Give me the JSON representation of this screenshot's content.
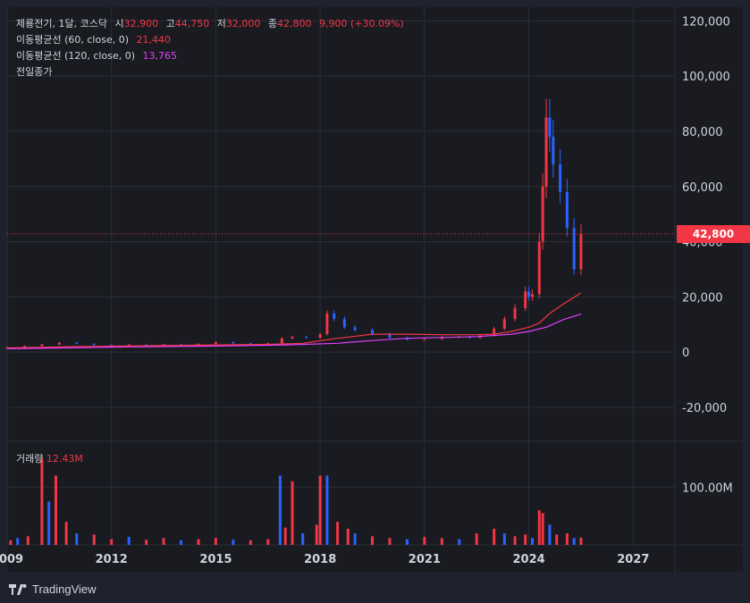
{
  "legend": {
    "symbol": "제룡전기, 1달, 코스닥",
    "open_label": "시",
    "open": "32,900",
    "high_label": "고",
    "high": "44,750",
    "low_label": "저",
    "low": "32,000",
    "close_label": "종",
    "close": "42,800",
    "change": "9,900 (+30.09%)",
    "ma60_label": "이동평균선 (60, close, 0)",
    "ma60_value": "21,440",
    "ma120_label": "이동평균선 (120, close, 0)",
    "ma120_value": "13,765",
    "prev_close_label": "전일종가"
  },
  "volume_legend": {
    "label": "거래량",
    "value": "12.43M"
  },
  "price_tag": "42,800",
  "footer": {
    "brand": "TradingView"
  },
  "colors": {
    "up": "#f23645",
    "down": "#2962ff",
    "ma60": "#f23645",
    "ma120": "#e040fb",
    "background": "#1e222d",
    "panel": "#1a1b21"
  },
  "chart_data": [
    {
      "type": "candlestick",
      "title": "",
      "y_axis_ticks": [
        "-20,000",
        "0",
        "20,000",
        "40,000",
        "60,000",
        "80,000",
        "100,000",
        "120,000"
      ],
      "ylim": [
        -32000,
        125000
      ],
      "x_axis_ticks": [
        "2009",
        "2012",
        "2015",
        "2018",
        "2021",
        "2024",
        "2027"
      ],
      "xlim": [
        2009.0,
        2028.2
      ],
      "last_price": 42800,
      "series": [
        {
          "name": "price_close_approx",
          "points": [
            [
              2009.0,
              1800
            ],
            [
              2009.5,
              2200
            ],
            [
              2010.0,
              2800
            ],
            [
              2010.5,
              3400
            ],
            [
              2011.0,
              3000
            ],
            [
              2011.5,
              2600
            ],
            [
              2012.0,
              2500
            ],
            [
              2012.5,
              2700
            ],
            [
              2013.0,
              2600
            ],
            [
              2013.5,
              2800
            ],
            [
              2014.0,
              2700
            ],
            [
              2014.5,
              3000
            ],
            [
              2015.0,
              3600
            ],
            [
              2015.5,
              3200
            ],
            [
              2016.0,
              3000
            ],
            [
              2016.5,
              3200
            ],
            [
              2016.9,
              5000
            ],
            [
              2017.2,
              5500
            ],
            [
              2017.6,
              5200
            ],
            [
              2018.0,
              6500
            ],
            [
              2018.2,
              14000
            ],
            [
              2018.4,
              12000
            ],
            [
              2018.7,
              9000
            ],
            [
              2019.0,
              8000
            ],
            [
              2019.5,
              6500
            ],
            [
              2020.0,
              5200
            ],
            [
              2020.5,
              4500
            ],
            [
              2021.0,
              4800
            ],
            [
              2021.5,
              5500
            ],
            [
              2022.0,
              5500
            ],
            [
              2022.3,
              5200
            ],
            [
              2022.6,
              6000
            ],
            [
              2023.0,
              8500
            ],
            [
              2023.3,
              12000
            ],
            [
              2023.6,
              16000
            ],
            [
              2023.9,
              22000
            ],
            [
              2024.0,
              20000
            ],
            [
              2024.1,
              21000
            ],
            [
              2024.3,
              40000
            ],
            [
              2024.4,
              60000
            ],
            [
              2024.5,
              85000
            ],
            [
              2024.6,
              78000
            ],
            [
              2024.7,
              68000
            ],
            [
              2024.9,
              58000
            ],
            [
              2025.1,
              45000
            ],
            [
              2025.3,
              30000
            ],
            [
              2025.5,
              42800
            ]
          ]
        },
        {
          "name": "이동평균선 (60, close, 0)",
          "points": [
            [
              2009.0,
              1500
            ],
            [
              2011.0,
              2000
            ],
            [
              2013.0,
              2300
            ],
            [
              2015.0,
              2600
            ],
            [
              2016.5,
              2800
            ],
            [
              2017.5,
              3200
            ],
            [
              2018.5,
              5000
            ],
            [
              2019.5,
              6500
            ],
            [
              2020.5,
              6500
            ],
            [
              2021.5,
              6300
            ],
            [
              2022.5,
              6300
            ],
            [
              2023.0,
              6500
            ],
            [
              2023.5,
              7500
            ],
            [
              2024.0,
              9000
            ],
            [
              2024.3,
              10500
            ],
            [
              2024.6,
              14000
            ],
            [
              2025.0,
              17500
            ],
            [
              2025.5,
              21440
            ]
          ]
        },
        {
          "name": "이동평균선 (120, close, 0)",
          "points": [
            [
              2009.0,
              1200
            ],
            [
              2012.0,
              1800
            ],
            [
              2015.0,
              2200
            ],
            [
              2017.0,
              2600
            ],
            [
              2018.5,
              3200
            ],
            [
              2019.5,
              4200
            ],
            [
              2020.5,
              5000
            ],
            [
              2021.5,
              5300
            ],
            [
              2022.5,
              5600
            ],
            [
              2023.5,
              6500
            ],
            [
              2024.0,
              7500
            ],
            [
              2024.5,
              9000
            ],
            [
              2025.0,
              11800
            ],
            [
              2025.5,
              13765
            ]
          ]
        }
      ]
    },
    {
      "type": "bar",
      "title": "",
      "y_axis_ticks": [
        "100.00M"
      ],
      "ylim": [
        0,
        170
      ],
      "x_axis_ticks": [
        "2009",
        "2012",
        "2015",
        "2018",
        "2021",
        "2024",
        "2027"
      ],
      "series": [
        {
          "name": "거래량",
          "points": [
            [
              2009.1,
              8
            ],
            [
              2009.3,
              12
            ],
            [
              2009.6,
              15
            ],
            [
              2010.0,
              150
            ],
            [
              2010.2,
              75
            ],
            [
              2010.4,
              120
            ],
            [
              2010.7,
              40
            ],
            [
              2011.0,
              20
            ],
            [
              2011.5,
              18
            ],
            [
              2012.0,
              10
            ],
            [
              2012.5,
              14
            ],
            [
              2013.0,
              9
            ],
            [
              2013.5,
              12
            ],
            [
              2014.0,
              8
            ],
            [
              2014.5,
              10
            ],
            [
              2015.0,
              12
            ],
            [
              2015.5,
              9
            ],
            [
              2016.0,
              8
            ],
            [
              2016.5,
              10
            ],
            [
              2016.85,
              120
            ],
            [
              2017.0,
              30
            ],
            [
              2017.2,
              110
            ],
            [
              2017.5,
              20
            ],
            [
              2017.9,
              35
            ],
            [
              2018.0,
              120
            ],
            [
              2018.2,
              120
            ],
            [
              2018.5,
              40
            ],
            [
              2018.8,
              28
            ],
            [
              2019.0,
              20
            ],
            [
              2019.5,
              15
            ],
            [
              2020.0,
              12
            ],
            [
              2020.5,
              10
            ],
            [
              2021.0,
              14
            ],
            [
              2021.5,
              12
            ],
            [
              2022.0,
              10
            ],
            [
              2022.5,
              20
            ],
            [
              2023.0,
              28
            ],
            [
              2023.3,
              20
            ],
            [
              2023.6,
              15
            ],
            [
              2023.9,
              18
            ],
            [
              2024.1,
              12
            ],
            [
              2024.3,
              60
            ],
            [
              2024.4,
              55
            ],
            [
              2024.6,
              35
            ],
            [
              2024.8,
              18
            ],
            [
              2025.1,
              20
            ],
            [
              2025.3,
              12
            ],
            [
              2025.5,
              12.43
            ]
          ]
        }
      ]
    }
  ]
}
